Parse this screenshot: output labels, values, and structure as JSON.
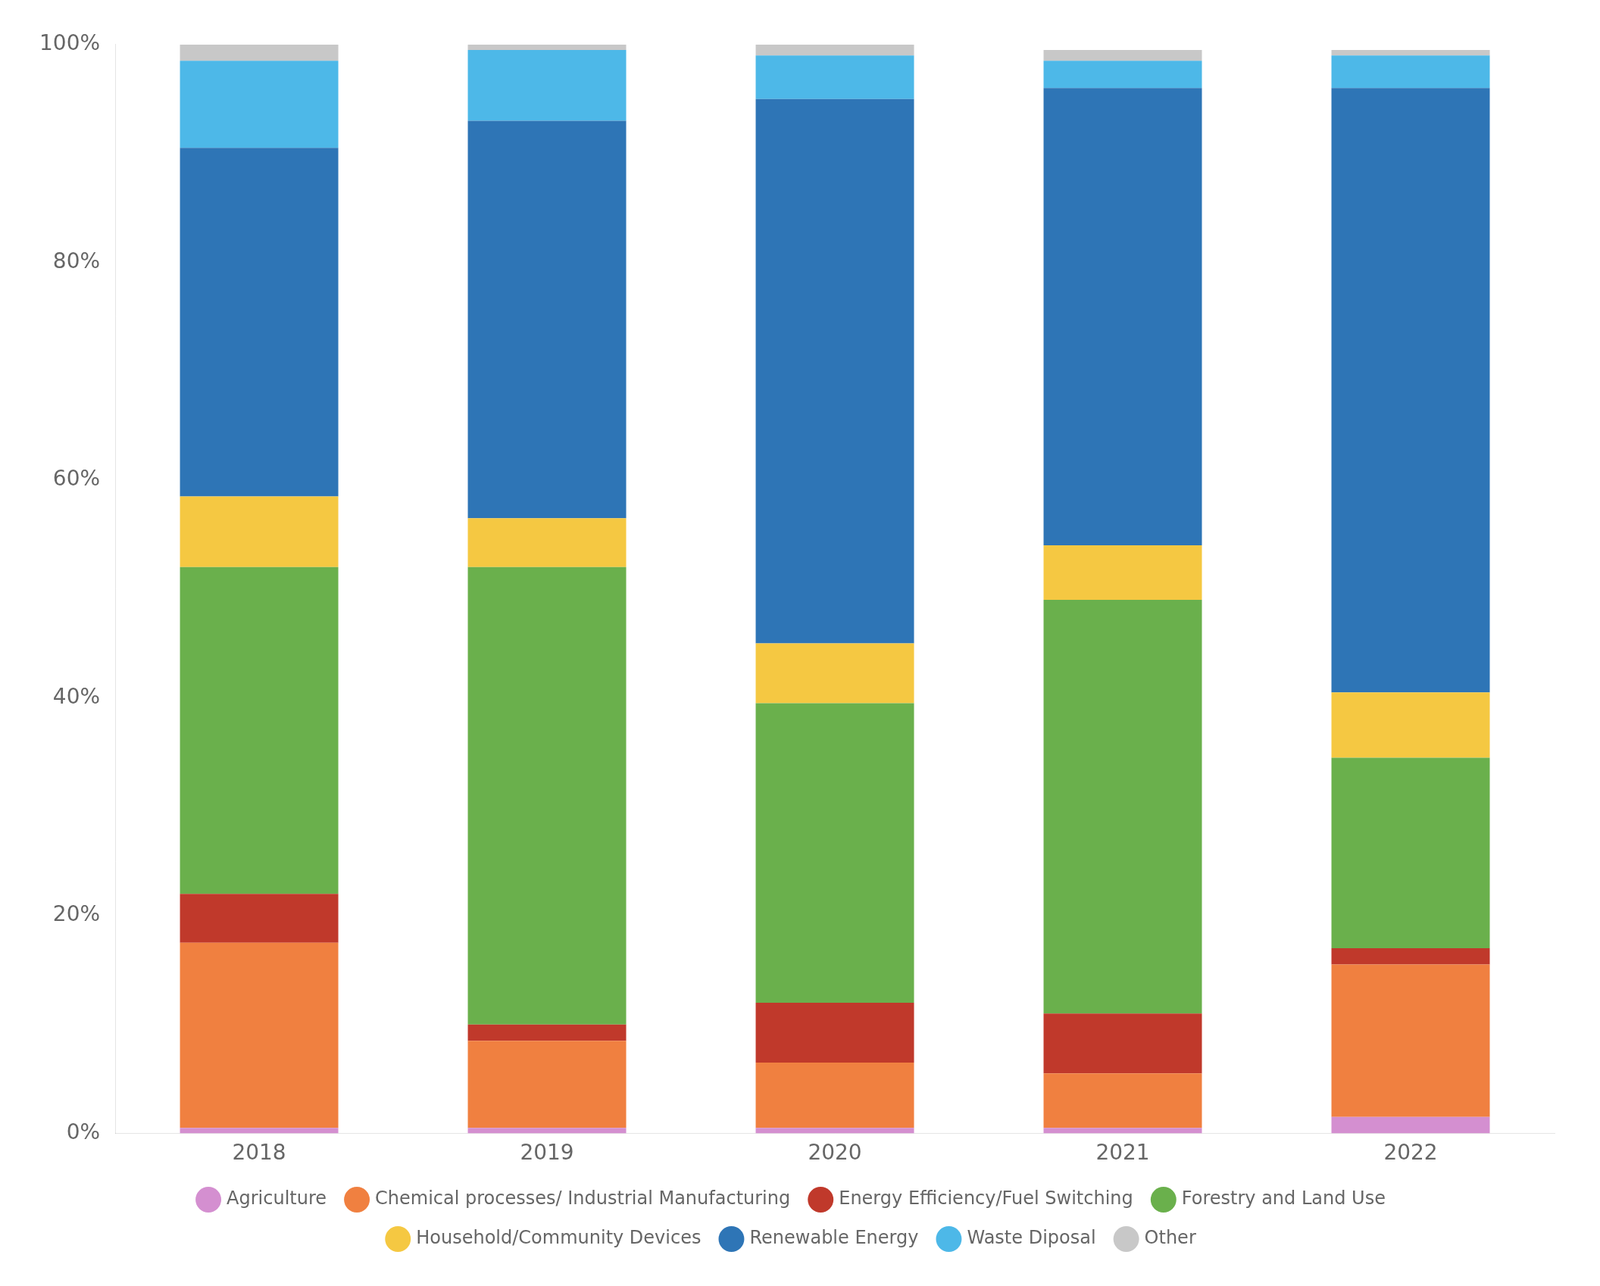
{
  "chart_data": {
    "type": "bar",
    "stacked": true,
    "grid": false,
    "legend": "bottom",
    "categories": [
      "2018",
      "2019",
      "2020",
      "2021",
      "2022"
    ],
    "series": [
      {
        "name": "Agriculture",
        "color": "#d48fd0",
        "values": [
          0.5,
          0.5,
          0.5,
          0.5,
          1.5
        ]
      },
      {
        "name": "Chemical processes/ Industrial Manufacturing",
        "color": "#f08040",
        "values": [
          17.0,
          8.0,
          6.0,
          5.0,
          14.0
        ]
      },
      {
        "name": "Energy Efficiency/Fuel Switching",
        "color": "#c0392b",
        "values": [
          4.5,
          1.5,
          5.5,
          5.5,
          1.5
        ]
      },
      {
        "name": "Forestry and Land Use",
        "color": "#6ab04c",
        "values": [
          30.0,
          42.0,
          27.5,
          38.0,
          17.5
        ]
      },
      {
        "name": "Household/Community Devices",
        "color": "#f5c842",
        "values": [
          6.5,
          4.5,
          5.5,
          5.0,
          6.0
        ]
      },
      {
        "name": "Renewable Energy",
        "color": "#2e75b6",
        "values": [
          32.0,
          36.5,
          50.0,
          42.0,
          55.5
        ]
      },
      {
        "name": "Waste Diposal",
        "color": "#4db8e8",
        "values": [
          8.0,
          6.5,
          4.0,
          2.5,
          3.0
        ]
      },
      {
        "name": "Other",
        "color": "#c8c8c8",
        "values": [
          1.5,
          0.5,
          1.0,
          1.0,
          0.5
        ]
      }
    ],
    "ylim": [
      0,
      100
    ],
    "yticks": [
      {
        "value": 0,
        "label": "0%"
      },
      {
        "value": 20,
        "label": "20%"
      },
      {
        "value": 40,
        "label": "40%"
      },
      {
        "value": 60,
        "label": "60%"
      },
      {
        "value": 80,
        "label": "80%"
      },
      {
        "value": 100,
        "label": "100%"
      }
    ]
  }
}
